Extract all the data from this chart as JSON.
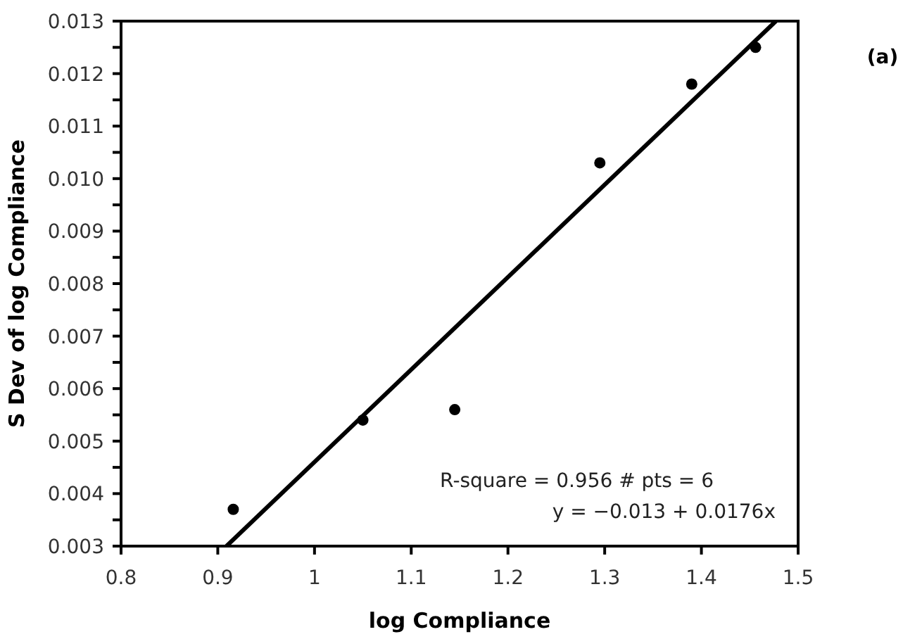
{
  "chart_data": {
    "type": "scatter",
    "xlabel": "log Compliance",
    "ylabel": "S Dev of log Compliance",
    "series": [
      {
        "color": "#000000",
        "x": [
          0.916,
          1.05,
          1.145,
          1.295,
          1.39,
          1.456
        ],
        "values": [
          0.0037,
          0.0054,
          0.0056,
          0.0103,
          0.0118,
          0.0125
        ],
        "marker": "circle"
      },
      {
        "type": "line",
        "color": "#000000",
        "x": [
          0.909,
          1.477
        ],
        "values": [
          0.003,
          0.013
        ],
        "line_style": "solid"
      }
    ],
    "xlim": [
      0.8,
      1.5
    ],
    "xticks": [
      0.8,
      0.9,
      1,
      1.1,
      1.2,
      1.3,
      1.4,
      1.5
    ],
    "ylim": [
      0.003,
      0.013
    ],
    "yticks": [
      {
        "value": 0.003,
        "label": "0.003"
      },
      {
        "value": 0.004,
        "label": "0.004"
      },
      {
        "value": 0.005,
        "label": "0.005"
      },
      {
        "value": 0.006,
        "label": "0.006"
      },
      {
        "value": 0.007,
        "label": "0.007"
      },
      {
        "value": 0.008,
        "label": "0.008"
      },
      {
        "value": 0.009,
        "label": "0.009"
      },
      {
        "value": 0.01,
        "label": "0.010"
      },
      {
        "value": 0.011,
        "label": "0.011"
      },
      {
        "value": 0.012,
        "label": "0.012"
      },
      {
        "value": 0.013,
        "label": "0.013"
      }
    ],
    "grid": false,
    "annotations": [
      "R-square = 0.956  # pts = 6",
      "y = −0.013 + 0.0176x",
      "(a)"
    ]
  }
}
